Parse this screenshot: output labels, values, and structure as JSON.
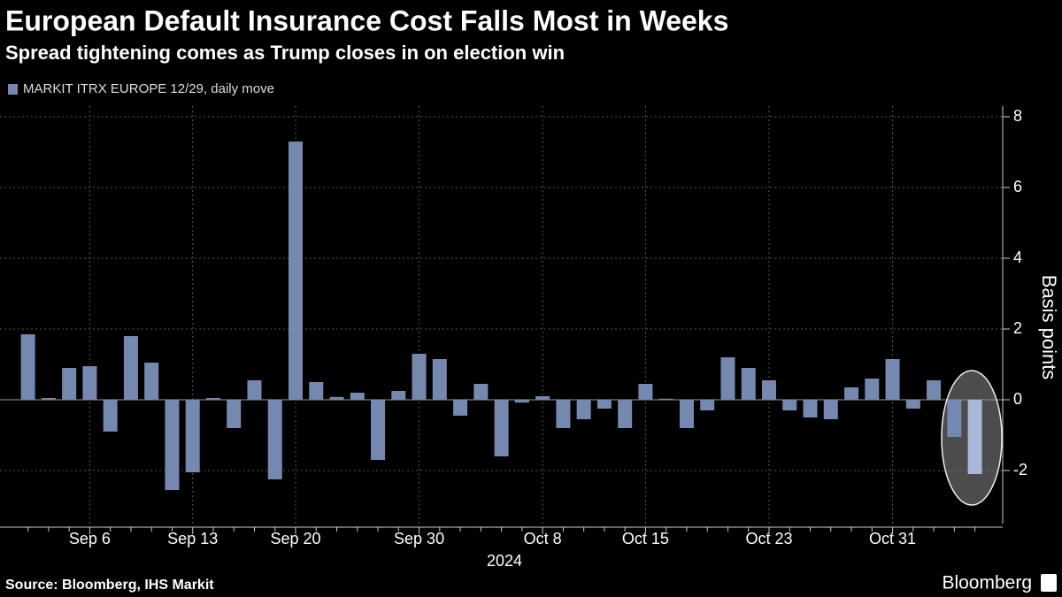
{
  "chart_data": {
    "type": "bar",
    "title": "European Default Insurance Cost Falls Most in Weeks",
    "subtitle": "Spread tightening comes as Trump closes in on election win",
    "series": [
      {
        "name": "MARKIT ITRX EUROPE 12/29, daily move",
        "color": "#7589b0",
        "values": [
          1.85,
          0.05,
          0.9,
          0.95,
          -0.9,
          1.8,
          1.05,
          -2.55,
          -2.05,
          0.05,
          -0.8,
          0.55,
          -2.25,
          7.3,
          0.5,
          0.08,
          0.2,
          -1.7,
          0.25,
          1.3,
          1.15,
          -0.45,
          0.45,
          -1.6,
          -0.08,
          0.1,
          -0.8,
          -0.55,
          -0.25,
          -0.8,
          0.45,
          0.03,
          -0.8,
          -0.3,
          1.2,
          0.9,
          0.55,
          -0.3,
          -0.5,
          -0.55,
          0.35,
          0.6,
          1.15,
          -0.25,
          0.55,
          -1.05,
          -2.1
        ]
      }
    ],
    "categories": [
      null,
      null,
      null,
      "Sep 6",
      null,
      null,
      null,
      null,
      "Sep 13",
      null,
      null,
      null,
      null,
      "Sep 20",
      null,
      null,
      null,
      null,
      null,
      "Sep 30",
      null,
      null,
      null,
      null,
      null,
      "Oct 8",
      null,
      null,
      null,
      null,
      "Oct 15",
      null,
      null,
      null,
      null,
      null,
      "Oct 23",
      null,
      null,
      null,
      null,
      null,
      "Oct 31",
      null,
      null,
      null,
      null
    ],
    "highlight": {
      "index": 46,
      "color": "#a9b8d8"
    },
    "x_label": "2024",
    "y_label": "Basis points",
    "ylim": [
      -3.5,
      8.3
    ],
    "yticks": [
      -2,
      0,
      2,
      4,
      6,
      8
    ],
    "grid": true,
    "source": "Source: Bloomberg, IHS Markit",
    "brand": "Bloomberg"
  }
}
